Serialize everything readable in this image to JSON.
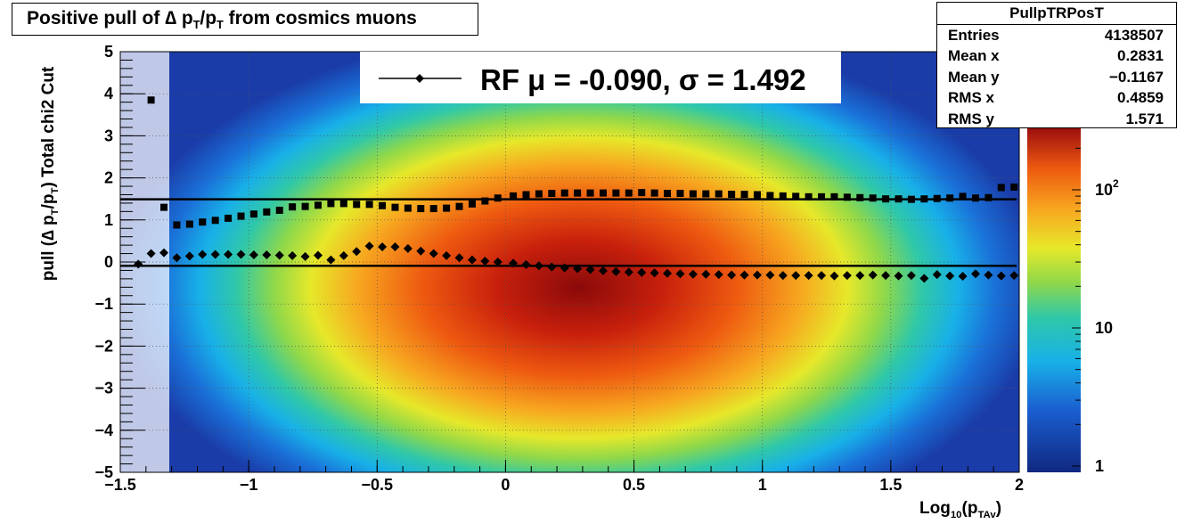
{
  "title": {
    "pre": "Positive pull of ",
    "delta": "∆",
    "p1": " p",
    "sub1": "T",
    "slash": "/p",
    "sub2": "T",
    "post": " from cosmics muons"
  },
  "stats": {
    "name": "PullpTRPosT",
    "rows": [
      {
        "label": "Entries",
        "value": "4138507"
      },
      {
        "label": "Mean x",
        "value": "0.2831"
      },
      {
        "label": "Mean y",
        "value": "−0.1167"
      },
      {
        "label": "RMS x",
        "value": "0.4859"
      },
      {
        "label": "RMS y",
        "value": "1.571"
      }
    ]
  },
  "legend": {
    "text": "RF μ = -0.090, σ =   1.492"
  },
  "axes": {
    "ylabel": "pull (∆ p",
    "ylabel_sub1": "T",
    "ylabel_mid": "/p",
    "ylabel_sub2": "T",
    "ylabel_post": ")  Total chi2 Cut",
    "xlabel": "Log",
    "xlabel_sub": "10",
    "xlabel_mid": "(p",
    "xlabel_sub2": "TAv",
    "xlabel_post": ")"
  },
  "colors": {
    "frame": "#000000",
    "marker": "#000000",
    "background_hist": "#f6efcf"
  },
  "chart_data": {
    "type": "heatmap",
    "x_range": [
      -1.5,
      2.0
    ],
    "y_range": [
      -5,
      5
    ],
    "x_ticks": [
      "−1.5",
      "−1",
      "−0.5",
      "0",
      "0.5",
      "1",
      "1.5",
      "2"
    ],
    "x_tick_values": [
      -1.5,
      -1,
      -0.5,
      0,
      0.5,
      1,
      1.5,
      2
    ],
    "y_ticks": [
      "−5",
      "−4",
      "−3",
      "−2",
      "−1",
      "0",
      "1",
      "2",
      "3",
      "4",
      "5"
    ],
    "y_tick_values": [
      -5,
      -4,
      -3,
      -2,
      -1,
      0,
      1,
      2,
      3,
      4,
      5
    ],
    "z_scale": "log",
    "z_ticks": [
      "1",
      "10",
      "10"
    ],
    "z_tick_exp": [
      "",
      "",
      "2"
    ],
    "z_tick_values": [
      1,
      10,
      100
    ],
    "grid": true,
    "hotspot": {
      "x": 0.33,
      "y": -0.55
    },
    "fit_lines": [
      {
        "name": "mean",
        "y": -0.09
      },
      {
        "name": "sigma",
        "y": 1.492
      }
    ],
    "series": [
      {
        "name": "mean",
        "marker": "diamond",
        "x": [
          -1.43,
          -1.38,
          -1.33,
          -1.28,
          -1.23,
          -1.18,
          -1.13,
          -1.08,
          -1.03,
          -0.98,
          -0.93,
          -0.88,
          -0.83,
          -0.78,
          -0.73,
          -0.68,
          -0.63,
          -0.58,
          -0.53,
          -0.48,
          -0.43,
          -0.38,
          -0.33,
          -0.28,
          -0.23,
          -0.18,
          -0.13,
          -0.08,
          -0.03,
          0.03,
          0.08,
          0.13,
          0.18,
          0.23,
          0.28,
          0.33,
          0.38,
          0.43,
          0.48,
          0.53,
          0.58,
          0.63,
          0.68,
          0.73,
          0.78,
          0.83,
          0.88,
          0.93,
          0.98,
          1.03,
          1.08,
          1.13,
          1.18,
          1.23,
          1.28,
          1.33,
          1.38,
          1.43,
          1.48,
          1.53,
          1.58,
          1.63,
          1.68,
          1.73,
          1.78,
          1.83,
          1.88,
          1.93,
          1.98
        ],
        "y": [
          -0.05,
          0.2,
          0.22,
          0.1,
          0.14,
          0.18,
          0.18,
          0.18,
          0.18,
          0.17,
          0.17,
          0.16,
          0.15,
          0.13,
          0.16,
          0.05,
          0.15,
          0.25,
          0.38,
          0.36,
          0.36,
          0.32,
          0.26,
          0.2,
          0.15,
          0.1,
          0.05,
          0.02,
          0.0,
          -0.03,
          -0.06,
          -0.09,
          -0.12,
          -0.14,
          -0.16,
          -0.18,
          -0.21,
          -0.23,
          -0.24,
          -0.25,
          -0.26,
          -0.27,
          -0.28,
          -0.29,
          -0.29,
          -0.3,
          -0.31,
          -0.31,
          -0.31,
          -0.31,
          -0.32,
          -0.32,
          -0.32,
          -0.32,
          -0.33,
          -0.32,
          -0.32,
          -0.31,
          -0.32,
          -0.33,
          -0.32,
          -0.39,
          -0.3,
          -0.33,
          -0.34,
          -0.28,
          -0.31,
          -0.33,
          -0.32
        ]
      },
      {
        "name": "sigma",
        "marker": "square",
        "x": [
          -1.38,
          -1.33,
          -1.28,
          -1.23,
          -1.18,
          -1.13,
          -1.08,
          -1.03,
          -0.98,
          -0.93,
          -0.88,
          -0.83,
          -0.78,
          -0.73,
          -0.68,
          -0.63,
          -0.58,
          -0.53,
          -0.48,
          -0.43,
          -0.38,
          -0.33,
          -0.28,
          -0.23,
          -0.18,
          -0.13,
          -0.08,
          -0.03,
          0.03,
          0.08,
          0.13,
          0.18,
          0.23,
          0.28,
          0.33,
          0.38,
          0.43,
          0.48,
          0.53,
          0.58,
          0.63,
          0.68,
          0.73,
          0.78,
          0.83,
          0.88,
          0.93,
          0.98,
          1.03,
          1.08,
          1.13,
          1.18,
          1.23,
          1.28,
          1.33,
          1.38,
          1.43,
          1.48,
          1.53,
          1.58,
          1.63,
          1.68,
          1.73,
          1.78,
          1.83,
          1.88,
          1.93,
          1.98
        ],
        "y": [
          3.85,
          1.3,
          0.88,
          0.9,
          0.95,
          0.99,
          1.04,
          1.09,
          1.14,
          1.19,
          1.23,
          1.31,
          1.32,
          1.35,
          1.39,
          1.39,
          1.37,
          1.37,
          1.34,
          1.3,
          1.28,
          1.27,
          1.27,
          1.28,
          1.32,
          1.38,
          1.45,
          1.52,
          1.57,
          1.6,
          1.62,
          1.63,
          1.64,
          1.64,
          1.64,
          1.64,
          1.64,
          1.64,
          1.65,
          1.64,
          1.63,
          1.63,
          1.62,
          1.62,
          1.62,
          1.61,
          1.61,
          1.6,
          1.58,
          1.57,
          1.56,
          1.55,
          1.55,
          1.55,
          1.54,
          1.53,
          1.52,
          1.5,
          1.5,
          1.49,
          1.5,
          1.51,
          1.52,
          1.56,
          1.52,
          1.53,
          1.77,
          1.78
        ]
      }
    ]
  }
}
